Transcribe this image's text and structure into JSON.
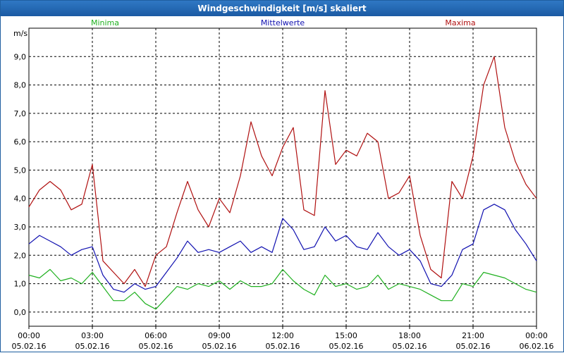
{
  "window": {
    "title": "Windgeschwindigkeit [m/s] skaliert"
  },
  "chart_data": {
    "type": "line",
    "title": "Windgeschwindigkeit [m/s] skaliert",
    "ylabel": "m/s",
    "ylim": [
      -0.5,
      10.0
    ],
    "xlim": [
      0,
      24
    ],
    "grid": true,
    "legend_placement": "top",
    "y_ticks": [
      "0,0",
      "1,0",
      "2,0",
      "3,0",
      "4,0",
      "5,0",
      "6,0",
      "7,0",
      "8,0",
      "9,0"
    ],
    "x_ticks": [
      {
        "time": "00:00",
        "date": "05.02.16"
      },
      {
        "time": "03:00",
        "date": "05.02.16"
      },
      {
        "time": "06:00",
        "date": "05.02.16"
      },
      {
        "time": "09:00",
        "date": "05.02.16"
      },
      {
        "time": "12:00",
        "date": "05.02.16"
      },
      {
        "time": "15:00",
        "date": "05.02.16"
      },
      {
        "time": "18:00",
        "date": "05.02.16"
      },
      {
        "time": "21:00",
        "date": "05.02.16"
      },
      {
        "time": "00:00",
        "date": "06.02.16"
      }
    ],
    "x": [
      0,
      0.5,
      1,
      1.5,
      2,
      2.5,
      3,
      3.5,
      4,
      4.5,
      5,
      5.5,
      6,
      6.5,
      7,
      7.5,
      8,
      8.5,
      9,
      9.5,
      10,
      10.5,
      11,
      11.5,
      12,
      12.5,
      13,
      13.5,
      14,
      14.5,
      15,
      15.5,
      16,
      16.5,
      17,
      17.5,
      18,
      18.5,
      19,
      19.5,
      20,
      20.5,
      21,
      21.5,
      22,
      22.5,
      23,
      23.5,
      24
    ],
    "series": [
      {
        "name": "Minima",
        "color": "#1fb01f",
        "values": [
          1.3,
          1.2,
          1.5,
          1.1,
          1.2,
          1.0,
          1.4,
          0.9,
          0.4,
          0.4,
          0.7,
          0.3,
          0.1,
          0.5,
          0.9,
          0.8,
          1.0,
          0.9,
          1.1,
          0.8,
          1.1,
          0.9,
          0.9,
          1.0,
          1.5,
          1.1,
          0.8,
          0.6,
          1.3,
          0.9,
          1.0,
          0.8,
          0.9,
          1.3,
          0.8,
          1.0,
          0.9,
          0.8,
          0.6,
          0.4,
          0.4,
          1.0,
          0.9,
          1.4,
          1.3,
          1.2,
          1.0,
          0.8,
          0.7
        ]
      },
      {
        "name": "Mittelwerte",
        "color": "#1010b0",
        "values": [
          2.4,
          2.7,
          2.5,
          2.3,
          2.0,
          2.2,
          2.3,
          1.3,
          0.8,
          0.7,
          1.0,
          0.8,
          0.9,
          1.4,
          1.9,
          2.5,
          2.1,
          2.2,
          2.1,
          2.3,
          2.5,
          2.1,
          2.3,
          2.1,
          3.3,
          2.9,
          2.2,
          2.3,
          3.0,
          2.5,
          2.7,
          2.3,
          2.2,
          2.8,
          2.3,
          2.0,
          2.2,
          1.8,
          1.0,
          0.9,
          1.3,
          2.2,
          2.4,
          3.6,
          3.8,
          3.6,
          2.9,
          2.4,
          1.8
        ]
      },
      {
        "name": "Maxima",
        "color": "#b01010",
        "values": [
          3.7,
          4.3,
          4.6,
          4.3,
          3.6,
          3.8,
          5.2,
          1.8,
          1.4,
          1.0,
          1.5,
          0.9,
          2.0,
          2.3,
          3.5,
          4.6,
          3.6,
          3.0,
          4.0,
          3.5,
          4.8,
          6.7,
          5.5,
          4.8,
          5.8,
          6.5,
          3.6,
          3.4,
          7.8,
          5.2,
          5.7,
          5.5,
          6.3,
          6.0,
          4.0,
          4.2,
          4.8,
          2.7,
          1.5,
          1.2,
          4.6,
          4.0,
          5.5,
          8.0,
          9.0,
          6.5,
          5.3,
          4.5,
          4.0
        ]
      }
    ]
  }
}
